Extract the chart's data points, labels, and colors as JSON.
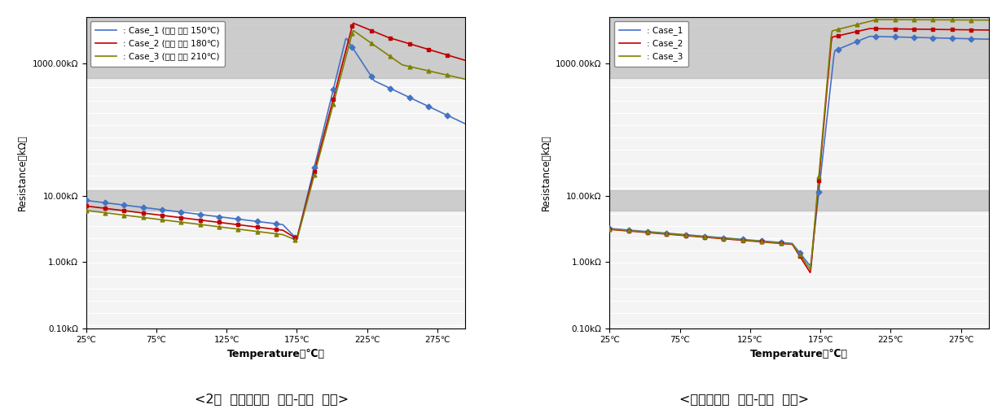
{
  "chart1_title": "<2차  개선시작품  온도-저항  특성>",
  "chart2_title": "<최종시작품  온도-저항  특성>",
  "ylabel": "Resistance（kΩ）",
  "xlabel": "Temperature（℃）",
  "colors": {
    "case1": "#4472C4",
    "case2": "#C00000",
    "case3": "#808000"
  },
  "legend1": [
    ": Case_1 (승온 조정 150℃)",
    ": Case_2 (승온 조정 180℃)",
    ": Case_3 (승온 조정 210℃)"
  ],
  "legend2": [
    ": Case_1",
    ": Case_2",
    ": Case_3"
  ],
  "xticks": [
    25,
    75,
    125,
    175,
    225,
    275
  ],
  "ytick_positions": [
    0.1,
    1.0,
    10.0,
    1000.0
  ],
  "ytick_labels": [
    "0.10kΩ",
    "1.00kΩ",
    "10.00kΩ",
    "1000.00kΩ"
  ],
  "gray_band_lower": [
    6.0,
    12.0
  ],
  "gray_band_upper": [
    600,
    5000
  ],
  "ylim": [
    0.1,
    5000
  ],
  "xlim": [
    25,
    295
  ]
}
